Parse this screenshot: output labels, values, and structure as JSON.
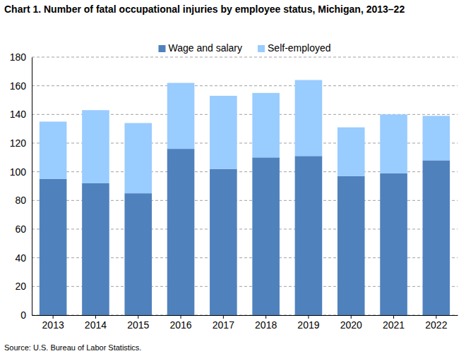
{
  "chart_data": {
    "type": "bar",
    "stacked": true,
    "title": "Chart 1. Number of fatal occupational injuries by employee status, Michigan, 2013–22",
    "source": "Source: U.S. Bureau of Labor Statistics.",
    "categories": [
      "2013",
      "2014",
      "2015",
      "2016",
      "2017",
      "2018",
      "2019",
      "2020",
      "2021",
      "2022"
    ],
    "series": [
      {
        "name": "Wage and salary",
        "color": "#4f81bd",
        "values": [
          95,
          92,
          85,
          116,
          102,
          110,
          111,
          97,
          99,
          108
        ]
      },
      {
        "name": "Self-employed",
        "color": "#99ccff",
        "values": [
          40,
          51,
          49,
          46,
          51,
          45,
          53,
          34,
          41,
          31
        ]
      }
    ],
    "ylim": [
      0,
      180
    ],
    "yticks": [
      0,
      20,
      40,
      60,
      80,
      100,
      120,
      140,
      160,
      180
    ],
    "grid": true,
    "legend": "top"
  }
}
